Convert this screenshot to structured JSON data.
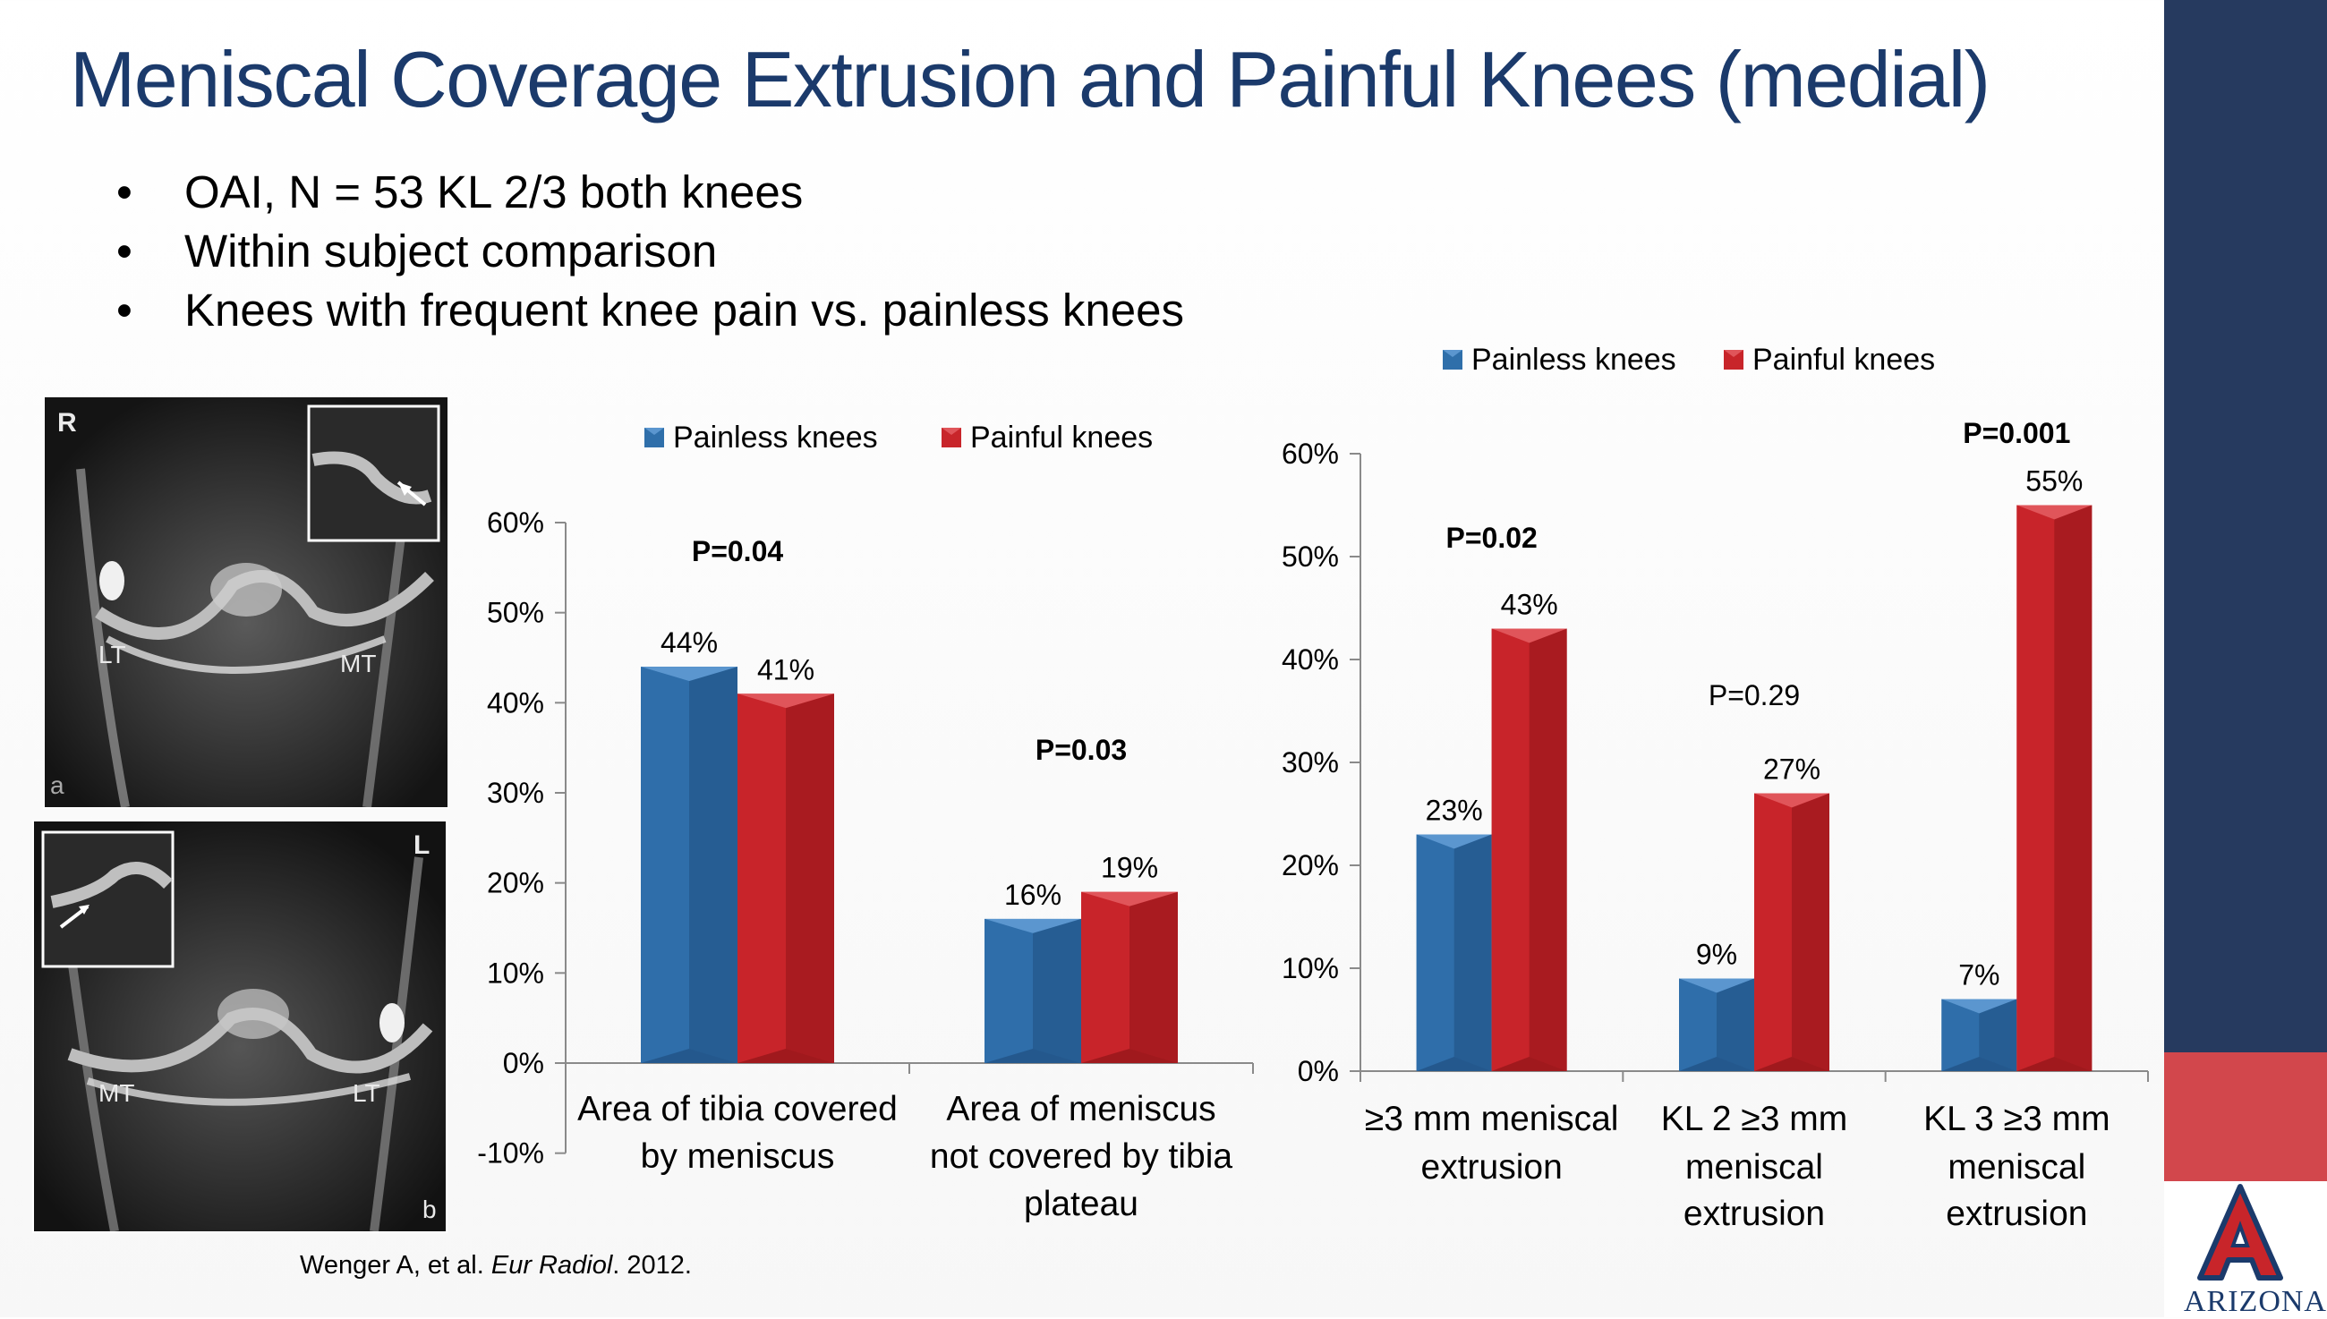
{
  "slide": {
    "title": "Meniscal Coverage Extrusion and Painful Knees (medial)",
    "bullets": [
      "OAI, N = 53 KL 2/3 both knees",
      "Within subject comparison",
      "Knees with frequent knee pain vs. painless knees"
    ],
    "citation": {
      "authors": "Wenger A, et al. ",
      "journal": "Eur Radiol",
      "year": ". 2012."
    },
    "logo_text": "ARIZONA"
  },
  "images": {
    "top": {
      "corner": "R",
      "left": "LT",
      "right": "MT",
      "panel": "a"
    },
    "bottom": {
      "corner": "L",
      "left": "MT",
      "right": "LT",
      "panel": "b"
    }
  },
  "colors": {
    "painless": "#2f6faa",
    "painful": "#c8252a",
    "title": "#1b3a6b",
    "sidebar": "#263a5f",
    "band": "#d2474c"
  },
  "chart_data": [
    {
      "type": "bar",
      "title": "",
      "categories": [
        "Area of tibia covered by meniscus",
        "Area of  meniscus not covered by  tibia plateau"
      ],
      "category_lines": [
        [
          "Area of tibia covered",
          "by meniscus"
        ],
        [
          "Area of  meniscus",
          "not covered by  tibia",
          "plateau"
        ]
      ],
      "series": [
        {
          "name": "Painless knees",
          "values": [
            44,
            16
          ],
          "labels": [
            "44%",
            "16%"
          ]
        },
        {
          "name": "Painful knees",
          "values": [
            41,
            19
          ],
          "labels": [
            "41%",
            "19%"
          ]
        }
      ],
      "p_values": [
        "P=0.04",
        "P=0.03"
      ],
      "p_bold": [
        true,
        true
      ],
      "yticks": [
        -10,
        0,
        10,
        20,
        30,
        40,
        50,
        60
      ],
      "ytick_labels": [
        "-10%",
        "0%",
        "10%",
        "20%",
        "30%",
        "40%",
        "50%",
        "60%"
      ],
      "ylim": [
        -10,
        60
      ],
      "legend": "top"
    },
    {
      "type": "bar",
      "title": "",
      "categories": [
        "≥3 mm meniscal extrusion",
        "KL 2 ≥3 mm meniscal extrusion",
        "KL 3 ≥3 mm meniscal extrusion"
      ],
      "category_lines": [
        [
          "≥3 mm meniscal",
          "extrusion"
        ],
        [
          "KL 2 ≥3 mm",
          "meniscal",
          "extrusion"
        ],
        [
          "KL 3 ≥3 mm",
          "meniscal",
          "extrusion"
        ]
      ],
      "series": [
        {
          "name": "Painless knees",
          "values": [
            23,
            9,
            7
          ],
          "labels": [
            "23%",
            "9%",
            "7%"
          ]
        },
        {
          "name": "Painful knees",
          "values": [
            43,
            27,
            55
          ],
          "labels": [
            "43%",
            "27%",
            "55%"
          ]
        }
      ],
      "p_values": [
        "P=0.02",
        "P=0.29",
        "P=0.001"
      ],
      "p_bold": [
        true,
        false,
        true
      ],
      "yticks": [
        0,
        10,
        20,
        30,
        40,
        50,
        60
      ],
      "ytick_labels": [
        "0%",
        "10%",
        "20%",
        "30%",
        "40%",
        "50%",
        "60%"
      ],
      "ylim": [
        0,
        60
      ],
      "legend": "top"
    }
  ]
}
